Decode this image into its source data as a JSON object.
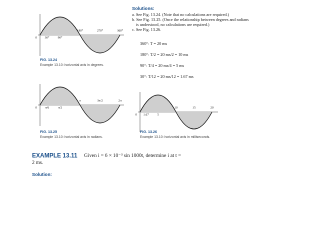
{
  "figures": [
    {
      "number": "FIG. 13.24",
      "caption": "Example 13.10: horizontal axis in degrees.",
      "axis_labels": [
        "0",
        "30°",
        "90°",
        "180°",
        "270°",
        "360°"
      ]
    },
    {
      "number": "FIG. 13.25",
      "caption": "Example 13.10: horizontal axis in radians.",
      "axis_labels": [
        "0",
        "π/6",
        "π/2",
        "π",
        "3π/2",
        "2π"
      ]
    },
    {
      "number": "FIG. 13.26",
      "caption": "Example 13.10: horizontal axis in milliseconds.",
      "axis_labels": [
        "0",
        "1.67",
        "5",
        "10",
        "15",
        "20"
      ]
    }
  ],
  "solutions": {
    "heading": "Solutions:",
    "items": [
      "a. See Fig. 13.24. (Note that no calculations are required.)",
      "b. See Fig. 13.25. (Once the relationship between degrees and radians",
      "is understood, no calculations are required.)",
      "c. See Fig. 13.26."
    ],
    "equations": [
      "360°:  T = 20 ms",
      "180°:  T/2 = 20 ms/2 = 10 ms",
      "90°:  T/4 = 20 ms/4 = 5 ms",
      "30°:  T/12 = 20 ms/12 = 1.67 ms"
    ]
  },
  "example": {
    "label": "EXAMPLE 13.11",
    "text": "Given i = 6 × 10⁻³ sin 1000t, determine i at t =",
    "text_cont": "2 ms.",
    "solution_heading": "Solution:"
  }
}
